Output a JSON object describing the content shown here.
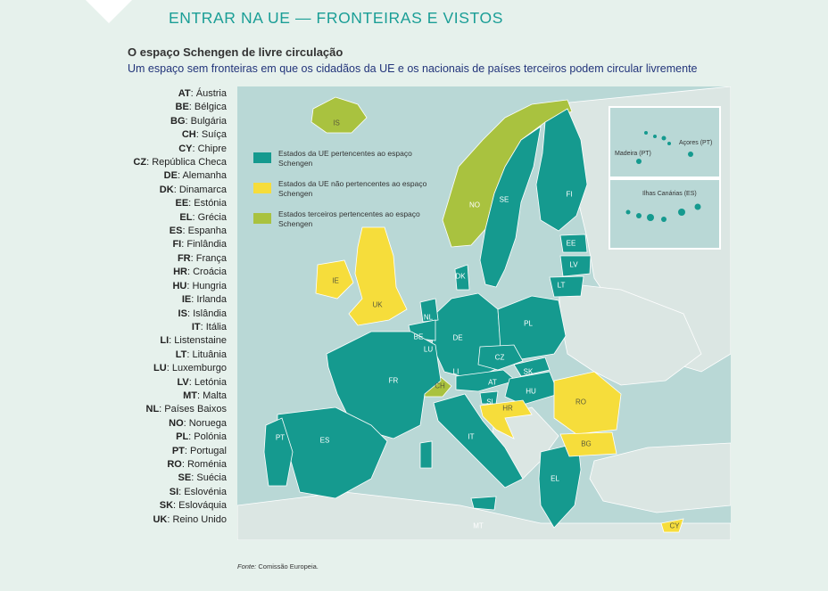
{
  "colors": {
    "eu_schengen": "#159a8f",
    "eu_non_schengen": "#f6dd3b",
    "third_schengen": "#a9c23f",
    "other_land": "#dbe6e3",
    "sea": "#b9d8d6",
    "header_accent": "#1a9e96"
  },
  "header": {
    "title": "ENTRAR NA UE — FRONTEIRAS E VISTOS"
  },
  "map_title": "O espaço Schengen de livre circulação",
  "map_subtitle": "Um espaço sem fronteiras em que os cidadãos da UE e os nacionais de países terceiros podem circular livremente",
  "codes": [
    {
      "code": "AT",
      "name": "Áustria"
    },
    {
      "code": "BE",
      "name": "Bélgica"
    },
    {
      "code": "BG",
      "name": "Bulgária"
    },
    {
      "code": "CH",
      "name": "Suíça"
    },
    {
      "code": "CY",
      "name": "Chipre"
    },
    {
      "code": "CZ",
      "name": "República Checa"
    },
    {
      "code": "DE",
      "name": "Alemanha"
    },
    {
      "code": "DK",
      "name": "Dinamarca"
    },
    {
      "code": "EE",
      "name": "Estónia"
    },
    {
      "code": "EL",
      "name": "Grécia"
    },
    {
      "code": "ES",
      "name": "Espanha"
    },
    {
      "code": "FI",
      "name": "Finlândia"
    },
    {
      "code": "FR",
      "name": "França"
    },
    {
      "code": "HR",
      "name": "Croácia"
    },
    {
      "code": "HU",
      "name": "Hungria"
    },
    {
      "code": "IE",
      "name": "Irlanda"
    },
    {
      "code": "IS",
      "name": "Islândia"
    },
    {
      "code": "IT",
      "name": "Itália"
    },
    {
      "code": "LI",
      "name": "Listenstaine"
    },
    {
      "code": "LT",
      "name": "Lituânia"
    },
    {
      "code": "LU",
      "name": "Luxemburgo"
    },
    {
      "code": "LV",
      "name": "Letónia"
    },
    {
      "code": "MT",
      "name": "Malta"
    },
    {
      "code": "NL",
      "name": "Países Baixos"
    },
    {
      "code": "NO",
      "name": "Noruega"
    },
    {
      "code": "PL",
      "name": "Polónia"
    },
    {
      "code": "PT",
      "name": "Portugal"
    },
    {
      "code": "RO",
      "name": "Roménia"
    },
    {
      "code": "SE",
      "name": "Suécia"
    },
    {
      "code": "SI",
      "name": "Eslovénia"
    },
    {
      "code": "SK",
      "name": "Eslováquia"
    },
    {
      "code": "UK",
      "name": "Reino Unido"
    }
  ],
  "legend": [
    {
      "label": "Estados da UE pertencentes ao espaço Schengen",
      "color": "#159a8f"
    },
    {
      "label": "Estados da UE não pertencentes ao espaço Schengen",
      "color": "#f6dd3b"
    },
    {
      "label": "Estados terceiros pertencentes ao espaço Schengen",
      "color": "#a9c23f"
    }
  ],
  "map_labels": {
    "IS": "IS",
    "NO": "NO",
    "SE": "SE",
    "FI": "FI",
    "EE": "EE",
    "LV": "LV",
    "LT": "LT",
    "DK": "DK",
    "IE": "IE",
    "UK": "UK",
    "NL": "NL",
    "BE": "BE",
    "LU": "LU",
    "DE": "DE",
    "PL": "PL",
    "CZ": "CZ",
    "SK": "SK",
    "AT": "AT",
    "HU": "HU",
    "LI": "LI",
    "CH": "CH",
    "FR": "FR",
    "SI": "SI",
    "HR": "HR",
    "RO": "RO",
    "BG": "BG",
    "IT": "IT",
    "EL": "EL",
    "PT": "PT",
    "ES": "ES",
    "MT": "MT",
    "CY": "CY"
  },
  "insets": {
    "azores_madeira": {
      "azores": "Açores (PT)",
      "madeira": "Madeira (PT)"
    },
    "canarias": "Ilhas Canárias (ES)"
  },
  "source": {
    "label": "Fonte:",
    "text": "Comissão Europeia."
  }
}
